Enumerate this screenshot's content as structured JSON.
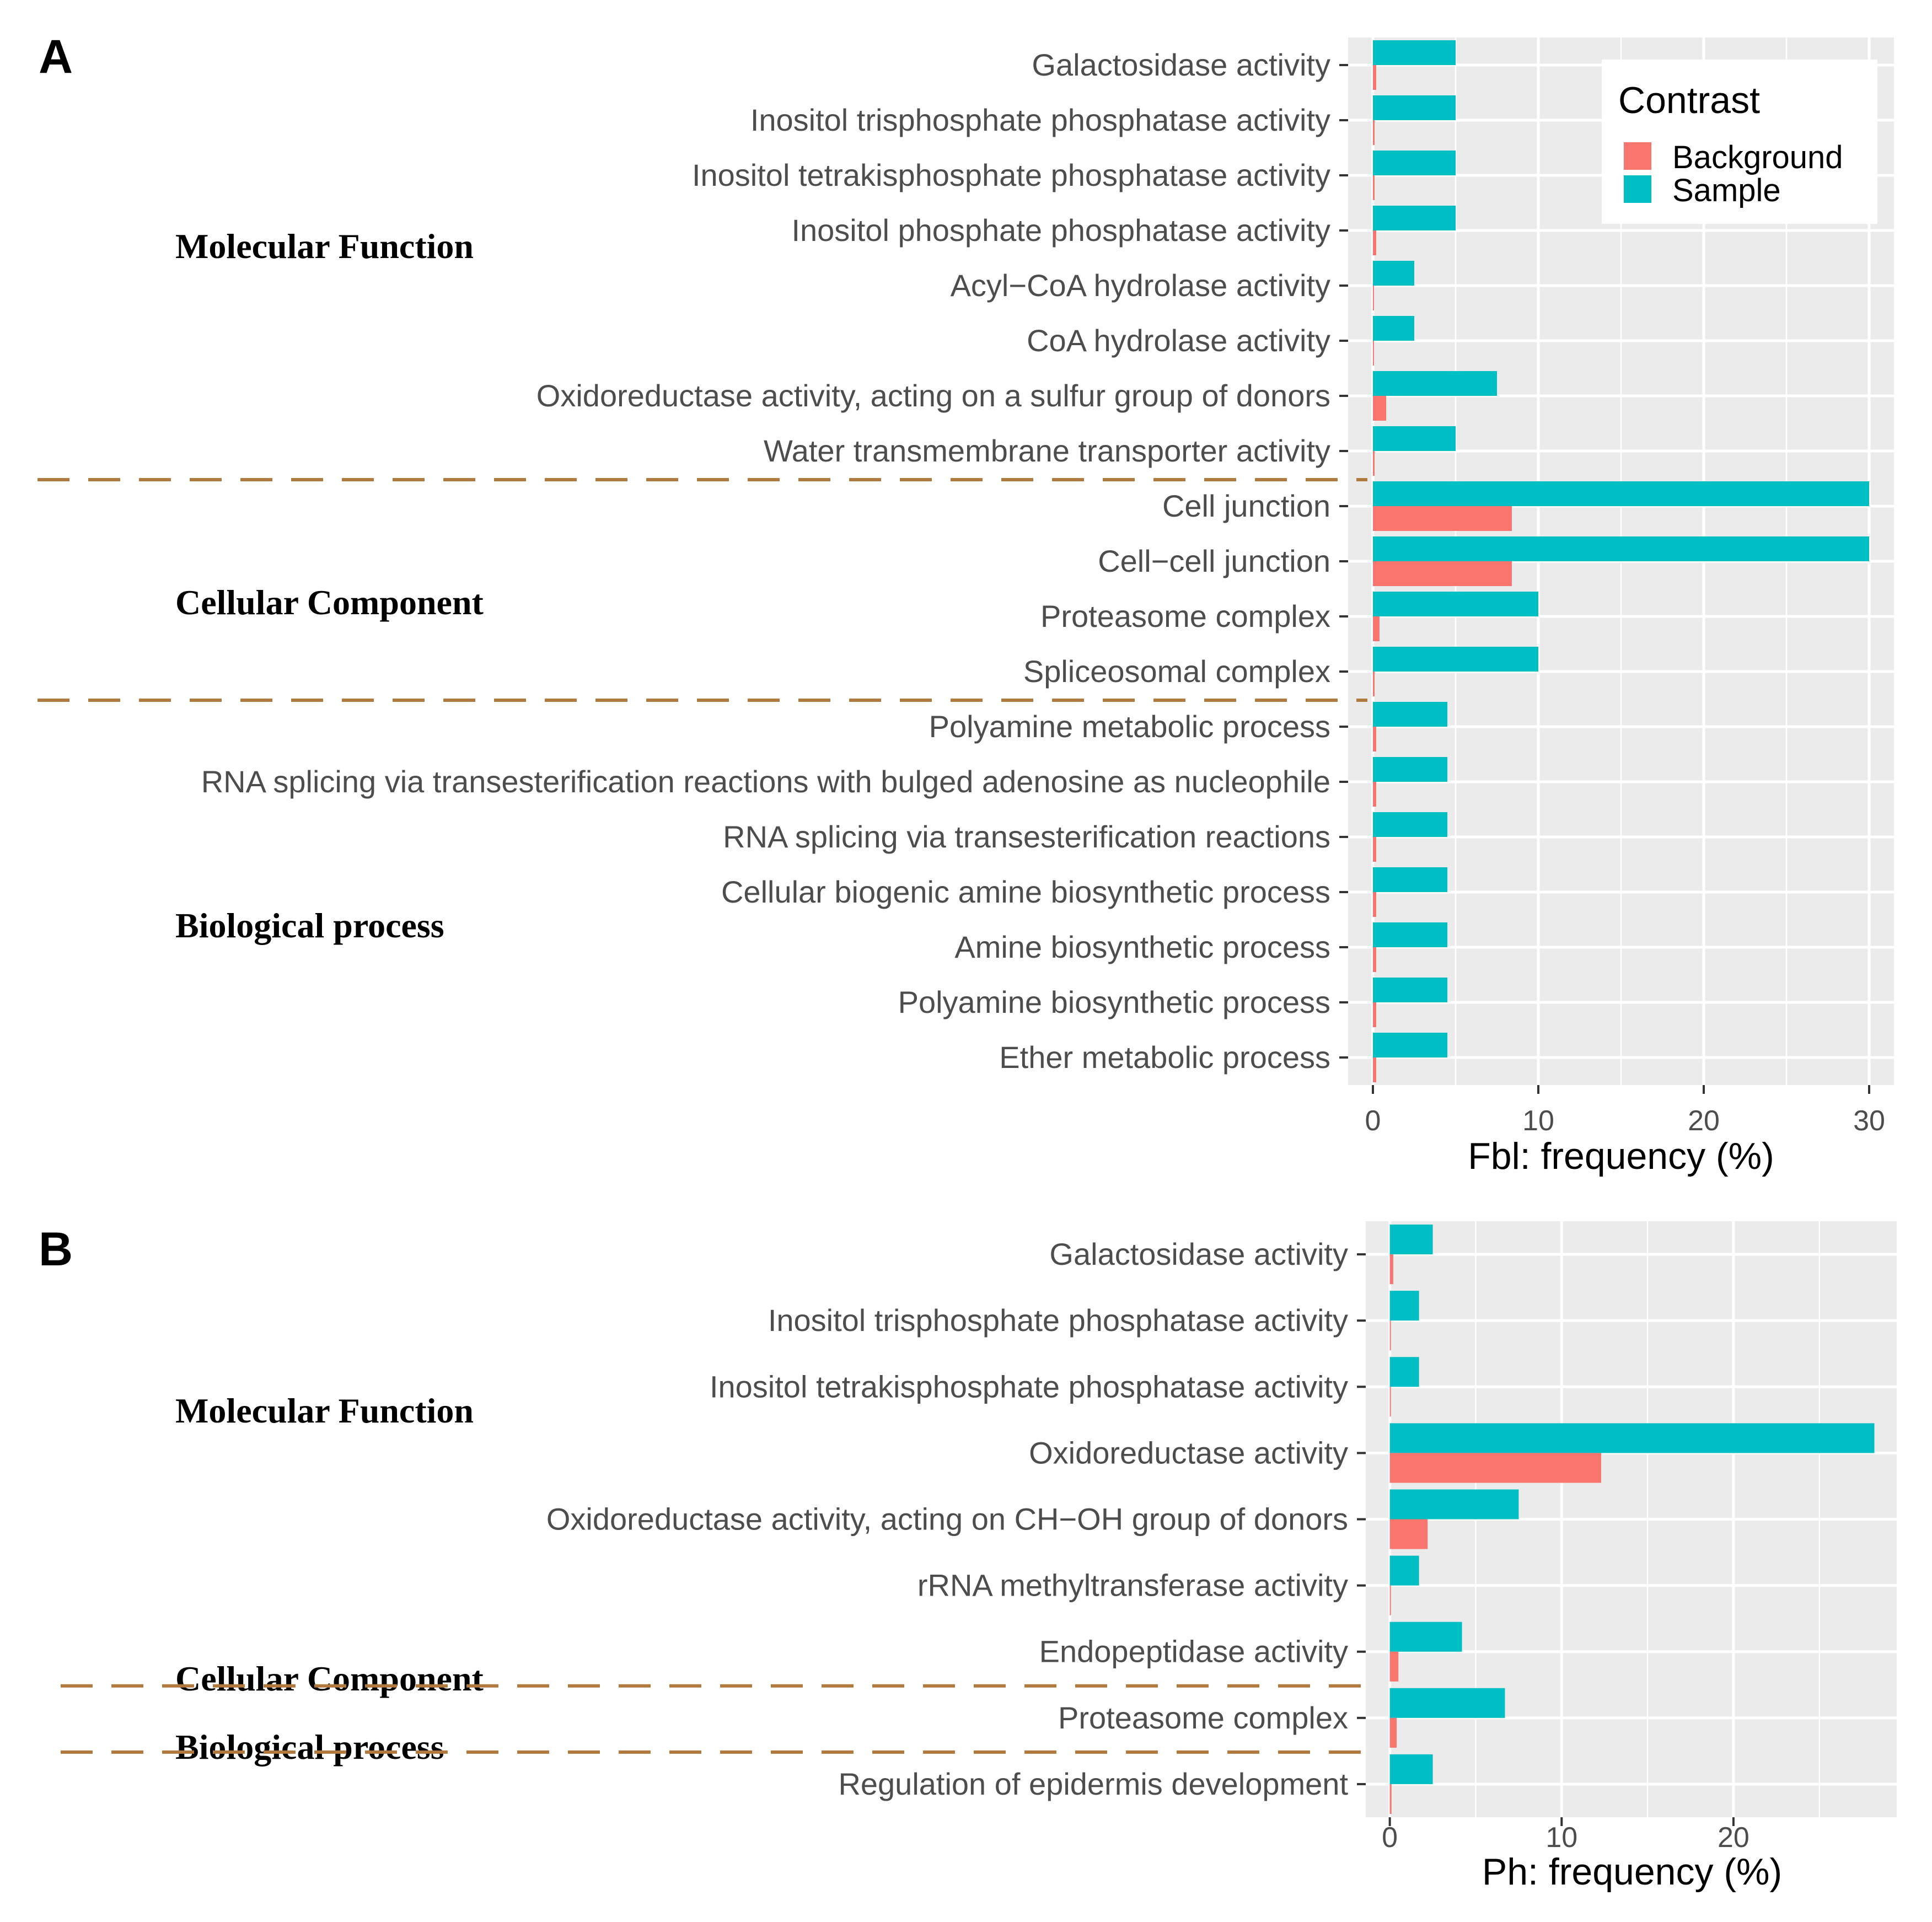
{
  "colors": {
    "background": "#F8766D",
    "sample": "#00BFC4",
    "panel_bg": "#EBEBEB",
    "grid": "#FFFFFF",
    "divider": "#B07A3E"
  },
  "legend": {
    "title": "Contrast",
    "items": [
      "Background",
      "Sample"
    ]
  },
  "chart_data": [
    {
      "panel": "A",
      "type": "bar",
      "orientation": "horizontal",
      "xlabel": "Fbl: frequency (%)",
      "xlim": [
        -1.5,
        31.5
      ],
      "xticks": [
        0,
        10,
        20,
        30
      ],
      "categories": [
        "Galactosidase activity",
        "Inositol trisphosphate phosphatase activity",
        "Inositol tetrakisphosphate phosphatase activity",
        "Inositol phosphate phosphatase activity",
        "Acyl−CoA hydrolase activity",
        "CoA hydrolase activity",
        "Oxidoreductase activity, acting on a sulfur group of donors",
        "Water transmembrane transporter activity",
        "Cell junction",
        "Cell−cell junction",
        "Proteasome complex",
        "Spliceosomal complex",
        "Polyamine metabolic process",
        "RNA splicing via transesterification reactions with bulged adenosine as nucleophile",
        "RNA splicing via transesterification reactions",
        "Cellular biogenic amine biosynthetic process",
        "Amine biosynthetic process",
        "Polyamine biosynthetic process",
        "Ether metabolic process"
      ],
      "series": [
        {
          "name": "Sample",
          "values": [
            5.0,
            5.0,
            5.0,
            5.0,
            2.5,
            2.5,
            7.5,
            5.0,
            30.0,
            30.0,
            10.0,
            10.0,
            4.5,
            4.5,
            4.5,
            4.5,
            4.5,
            4.5,
            4.5
          ]
        },
        {
          "name": "Background",
          "values": [
            0.2,
            0.1,
            0.1,
            0.2,
            0.05,
            0.05,
            0.8,
            0.1,
            8.4,
            8.4,
            0.4,
            0.1,
            0.2,
            0.2,
            0.2,
            0.2,
            0.2,
            0.2,
            0.2
          ]
        }
      ],
      "groups": [
        {
          "label": "Molecular Function",
          "count": 8
        },
        {
          "label": "Cellular Component",
          "count": 4
        },
        {
          "label": "Biological process",
          "count": 7
        }
      ]
    },
    {
      "panel": "B",
      "type": "bar",
      "orientation": "horizontal",
      "xlabel": "Ph: frequency (%)",
      "xlim": [
        -1.4,
        29.5
      ],
      "xticks": [
        0,
        10,
        20
      ],
      "categories": [
        "Galactosidase activity",
        "Inositol trisphosphate phosphatase activity",
        "Inositol tetrakisphosphate phosphatase activity",
        "Oxidoreductase activity",
        "Oxidoreductase activity, acting on CH−OH group of donors",
        "rRNA methyltransferase activity",
        "Endopeptidase activity",
        "Proteasome complex",
        "Regulation of epidermis development"
      ],
      "series": [
        {
          "name": "Sample",
          "values": [
            2.5,
            1.7,
            1.7,
            28.2,
            7.5,
            1.7,
            4.2,
            6.7,
            2.5
          ]
        },
        {
          "name": "Background",
          "values": [
            0.2,
            0.05,
            0.05,
            12.3,
            2.2,
            0.05,
            0.5,
            0.4,
            0.1
          ]
        }
      ],
      "groups": [
        {
          "label": "Molecular Function",
          "count": 7
        },
        {
          "label": "Cellular Component",
          "count": 1
        },
        {
          "label": "Biological process",
          "count": 1
        }
      ]
    }
  ]
}
